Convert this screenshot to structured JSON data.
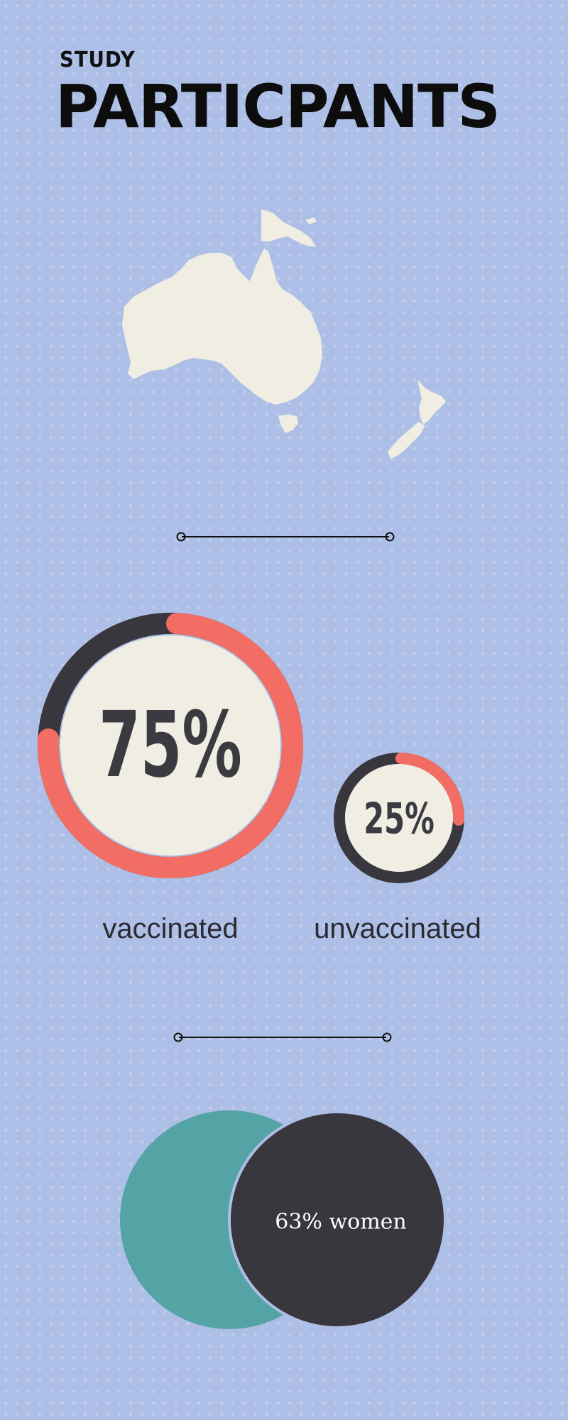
{
  "header": {
    "kicker": "STUDY",
    "title": "PARTICPANTS"
  },
  "region_map": {
    "icon": "australia-new-zealand-map-icon"
  },
  "vaccination": {
    "vaccinated": {
      "percent_label": "75%",
      "fraction": 0.75,
      "caption": "vaccinated"
    },
    "unvaccinated": {
      "percent_label": "25%",
      "fraction": 0.25,
      "caption": "unvaccinated"
    }
  },
  "gender": {
    "women_label": "63% women",
    "women_fraction": 0.63
  },
  "colors": {
    "background": "#adbfe6",
    "ring_accent": "#f26d64",
    "ring_dark": "#38373d",
    "disc_fill": "#f0ede3",
    "map_fill": "#f0ede3",
    "teal": "#54a3a5",
    "women_circle": "#38373d",
    "divider": "#111111"
  }
}
